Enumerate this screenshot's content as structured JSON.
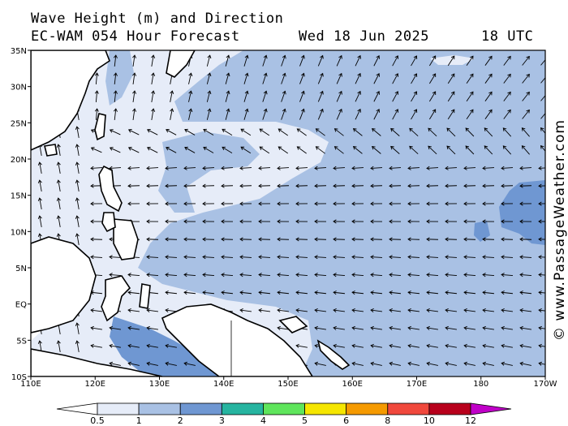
{
  "title": {
    "line1": "Wave Height (m) and Direction",
    "model": "EC-WAM 054 Hour Forecast",
    "date": "Wed 18 Jun 2025",
    "time": "18 UTC"
  },
  "credit": "© www.PassageWeather.com",
  "axes": {
    "lat_labels": [
      "35N",
      "30N",
      "25N",
      "20N",
      "15N",
      "10N",
      "5N",
      "EQ",
      "5S",
      "10S"
    ],
    "lon_labels": [
      "110E",
      "120E",
      "130E",
      "140E",
      "150E",
      "160E",
      "170E",
      "180",
      "170W"
    ]
  },
  "legend": {
    "labels": [
      "0.5",
      "1",
      "2",
      "3",
      "4",
      "5",
      "6",
      "8",
      "10",
      "12"
    ],
    "colors": [
      "#e6ecf8",
      "#a9c1e4",
      "#6f97d2",
      "#26b4a0",
      "#5fe55c",
      "#f5e600",
      "#f59a00",
      "#f0483c",
      "#b8001c",
      "#c000c8"
    ]
  },
  "chart_data": {
    "type": "heatmap",
    "title": "Wave Height (m) and Direction",
    "xlabel": "",
    "ylabel": "",
    "xlim": [
      "110E",
      "170W"
    ],
    "ylim": [
      "10S",
      "35N"
    ],
    "units": "m",
    "colorbar_bins_m": [
      0.5,
      1,
      2,
      3,
      4,
      5,
      6,
      8,
      10,
      12
    ],
    "dominant_band_m": [
      1,
      2
    ],
    "arrow_direction": "prevailing easterly swell (arrows pointing west), turning northward north of 25N"
  }
}
